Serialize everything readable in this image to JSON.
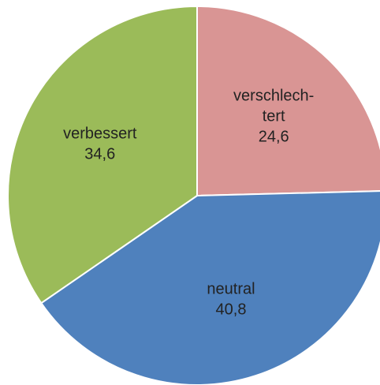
{
  "chart_data": {
    "type": "pie",
    "categories": [
      "verschlech-tert",
      "neutral",
      "verbessert"
    ],
    "values": [
      24.6,
      40.8,
      34.6
    ],
    "value_labels": [
      "24,6",
      "40,8",
      "34,6"
    ],
    "colors": [
      "#d99594",
      "#4f81bd",
      "#9bbb59"
    ]
  }
}
